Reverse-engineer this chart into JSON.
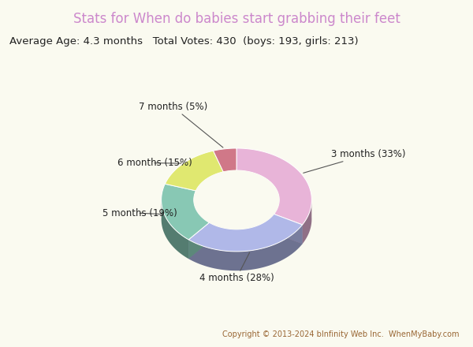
{
  "title": "Stats for When do babies start grabbing their feet",
  "subtitle": "Average Age: 4.3 months   Total Votes: 430  (boys: 193, girls: 213)",
  "copyright": "Copyright © 2013-2024 bInfinity Web Inc.  WhenMyBaby.com",
  "background_color": "#fafaf0",
  "title_color": "#cc88cc",
  "subtitle_color": "#222222",
  "copyright_color": "#996633",
  "slices": [
    {
      "label": "3 months (33%)",
      "value": 33,
      "color": "#e8b4d8"
    },
    {
      "label": "4 months (28%)",
      "value": 28,
      "color": "#b0b8e8"
    },
    {
      "label": "5 months (19%)",
      "value": 19,
      "color": "#88c8b4"
    },
    {
      "label": "6 months (15%)",
      "value": 15,
      "color": "#e0e870"
    },
    {
      "label": "7 months (5%)",
      "value": 5,
      "color": "#d07888"
    }
  ]
}
